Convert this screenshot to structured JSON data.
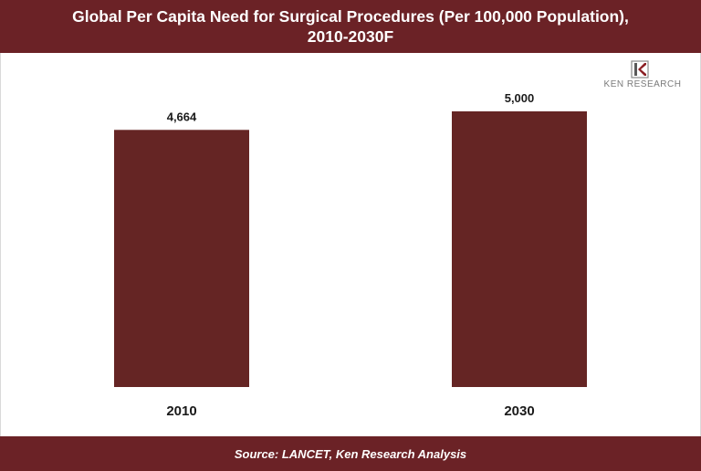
{
  "title": {
    "line1": "Global Per Capita Need for Surgical Procedures (Per 100,000 Population),",
    "line2": "2010-2030F"
  },
  "logo": {
    "text": "KEN RESEARCH"
  },
  "source": "Source:  LANCET, Ken Research Analysis",
  "colors": {
    "bar": "#652524",
    "header": "#6b2226",
    "text": "#1a1a1a"
  },
  "chart_data": {
    "type": "bar",
    "title": "Global Per Capita Need for Surgical Procedures (Per 100,000 Population), 2010-2030F",
    "categories": [
      "2010",
      "2030"
    ],
    "values": [
      4664,
      5000
    ],
    "value_labels": [
      "4,664",
      "5,000"
    ],
    "xlabel": "",
    "ylabel": "",
    "grid": false,
    "legend": "none"
  }
}
